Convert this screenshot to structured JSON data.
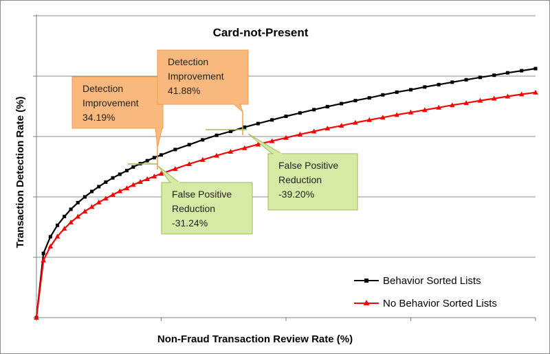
{
  "chart_data": {
    "type": "line",
    "title": "Card-not-Present",
    "xlabel": "Non-Fraud Transaction  Review Rate (%)",
    "ylabel": "Transaction  Detection Rate (%)",
    "xlim": [
      0,
      100
    ],
    "ylim": [
      0,
      100
    ],
    "x_gridlines": false,
    "y_gridlines": true,
    "legend_position": "bottom-right",
    "series": [
      {
        "name": "Behavior Sorted Lists",
        "color": "#000000",
        "marker": "square",
        "x": [
          0,
          1.4,
          2.8,
          4.2,
          5.6,
          6.9,
          8.3,
          9.7,
          11.1,
          12.5,
          13.9,
          15.3,
          16.7,
          18.1,
          19.4,
          20.8,
          22.2,
          23.6,
          25,
          27.8,
          30.6,
          33.3,
          36.1,
          38.9,
          41.7,
          44.4,
          47.2,
          50,
          52.8,
          55.6,
          58.3,
          61.1,
          63.9,
          66.7,
          69.4,
          72.2,
          75,
          77.8,
          80.6,
          83.3,
          86.1,
          88.9,
          91.7,
          94.4,
          97.2,
          100
        ],
        "y": [
          0,
          21.3,
          26.8,
          30.6,
          33.5,
          35.9,
          38.1,
          40,
          41.8,
          43.4,
          44.9,
          46.3,
          47.5,
          48.7,
          49.9,
          51,
          52,
          53,
          53.9,
          55.7,
          57.3,
          58.9,
          60.4,
          61.7,
          63.1,
          64.3,
          65.5,
          66.7,
          67.8,
          68.9,
          69.9,
          70.9,
          71.9,
          72.8,
          73.8,
          74.7,
          75.5,
          76.4,
          77.2,
          78,
          78.8,
          79.6,
          80.3,
          81.1,
          81.8,
          82.5
        ]
      },
      {
        "name": "No Behavior Sorted Lists",
        "color": "#ff0000",
        "marker": "triangle",
        "x": [
          0,
          1.4,
          2.8,
          4.2,
          5.6,
          6.9,
          8.3,
          9.7,
          11.1,
          12.5,
          13.9,
          15.3,
          16.7,
          18.1,
          19.4,
          20.8,
          22.2,
          23.6,
          25,
          27.8,
          30.6,
          33.3,
          36.1,
          38.9,
          41.7,
          44.4,
          47.2,
          50,
          52.8,
          55.6,
          58.3,
          61.1,
          63.9,
          66.7,
          69.4,
          72.2,
          75,
          77.8,
          80.6,
          83.3,
          86.1,
          88.9,
          91.7,
          94.4,
          97.2,
          100
        ],
        "y": [
          0,
          19,
          23.6,
          26.9,
          29.5,
          31.6,
          33.5,
          35.2,
          36.7,
          38.2,
          39.5,
          40.7,
          41.9,
          42.9,
          44,
          45,
          45.9,
          46.8,
          47.7,
          49.3,
          50.9,
          52.3,
          53.7,
          55,
          56.2,
          57.4,
          58.5,
          59.6,
          60.7,
          61.7,
          62.7,
          63.6,
          64.6,
          65.5,
          66.3,
          67.2,
          68,
          68.8,
          69.6,
          70.4,
          71.1,
          71.9,
          72.6,
          73.3,
          74,
          74.6
        ]
      }
    ],
    "annotations": [
      {
        "kind": "detection",
        "line1": "Detection",
        "line2": "Improvement",
        "line3": "34.19%"
      },
      {
        "kind": "detection",
        "line1": "Detection",
        "line2": "Improvement",
        "line3": "41.88%"
      },
      {
        "kind": "false-positive",
        "line1": "False Positive",
        "line2": "Reduction",
        "line3": "-31.24%"
      },
      {
        "kind": "false-positive",
        "line1": "False Positive",
        "line2": "Reduction",
        "line3": "-39.20%"
      }
    ],
    "callout_colors": {
      "detection_fill": "#f9b97e",
      "detection_border": "#f39a46",
      "fp_fill": "#d6e9a5",
      "fp_border": "#9bbb59"
    }
  }
}
